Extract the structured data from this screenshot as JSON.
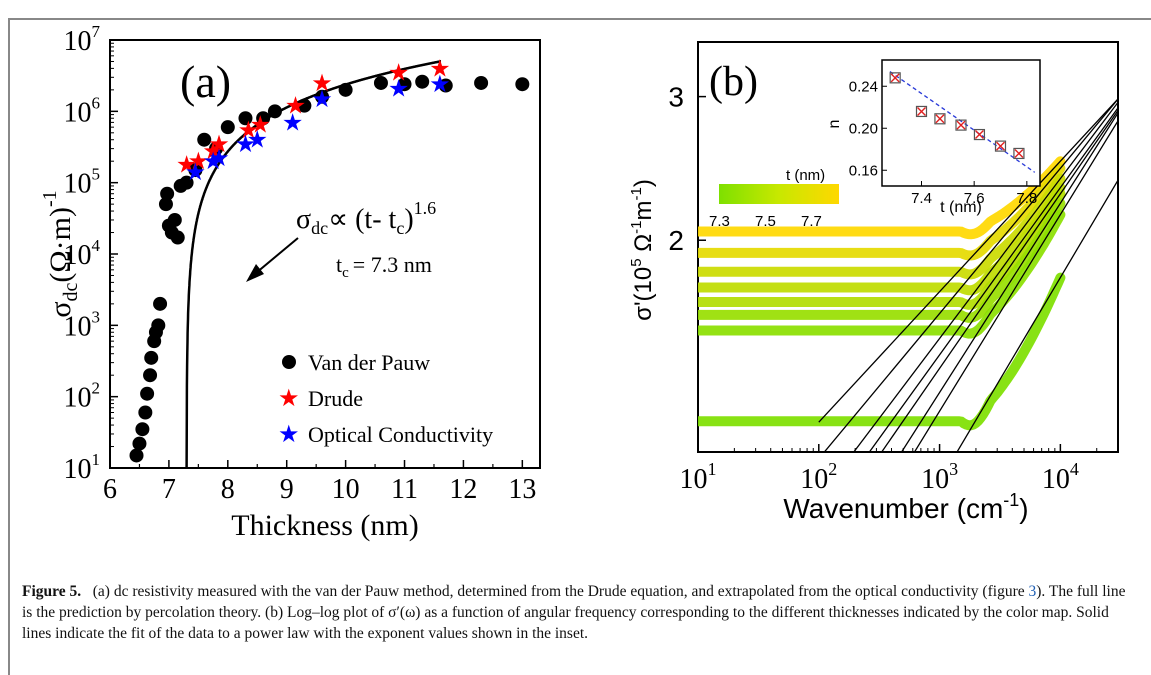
{
  "figure": {
    "panel_a": {
      "panel_label": "(a)",
      "xlabel": "Thickness (nm)",
      "ylabel_main": "σ",
      "ylabel_sub": "dc",
      "ylabel_unit": "(Ω·m)",
      "ylabel_exp": "-1",
      "formula_main": "σ",
      "formula_sub": "dc",
      "formula_mid": "∝ (t- t",
      "formula_sub2": "c",
      "formula_end": ")",
      "formula_exp": "1.6",
      "tc_label": "t",
      "tc_sub": "c",
      "tc_value": "= 7.3 nm",
      "legend": [
        "Van der Pauw",
        "Drude",
        "Optical Conductivity"
      ],
      "x_ticks": [
        "6",
        "7",
        "8",
        "9",
        "10",
        "11",
        "12",
        "13"
      ],
      "y_ticks_base": [
        "10",
        "10",
        "10",
        "10",
        "10",
        "10",
        "10"
      ],
      "y_ticks_exp": [
        "1",
        "2",
        "3",
        "4",
        "5",
        "6",
        "7"
      ]
    },
    "panel_b": {
      "panel_label": "(b)",
      "xlabel": "Wavenumber (cm",
      "xlabel_exp": "-1",
      "xlabel_end": ")",
      "ylabel": "σ'(10",
      "ylabel_exp": "5",
      "ylabel_mid": " Ω",
      "ylabel_exp2": "-1",
      "ylabel_mid2": "m",
      "ylabel_exp3": "-1",
      "ylabel_end": ")",
      "x_ticks_base": [
        "10",
        "10",
        "10",
        "10"
      ],
      "x_ticks_exp": [
        "1",
        "2",
        "3",
        "4"
      ],
      "y_ticks": [
        "3",
        "2"
      ],
      "colorbar_title": "t (nm)",
      "colorbar_ticks": [
        "7.3",
        "7.5",
        "7.7"
      ],
      "inset_xlabel": "t (nm)",
      "inset_ylabel": "n",
      "inset_x_ticks": [
        "7.4",
        "7.6",
        "7.8"
      ],
      "inset_y_ticks": [
        "0.24",
        "0.20",
        "0.16"
      ]
    },
    "caption": {
      "label": "Figure 5.",
      "text_1": "(a) dc resistivity measured with the van der Pauw method, determined from the Drude equation, and extrapolated from the optical conductivity (figure ",
      "ref": "3",
      "text_2": "). The full line is the prediction by percolation theory. (b) Log–log plot of σ′(ω) as a function of angular frequency corresponding to the different thicknesses indicated by the color map. Solid lines indicate the fit of the data to a power law with the exponent values shown in the inset."
    }
  },
  "chart_data": [
    {
      "type": "scatter",
      "title": "(a)",
      "xlabel": "Thickness (nm)",
      "ylabel": "σdc(Ω·m)-1",
      "xlim": [
        6,
        13.3
      ],
      "ylim": [
        10,
        10000000
      ],
      "y_scale": "log",
      "legend_position": "bottom-right",
      "series": [
        {
          "name": "Van der Pauw",
          "marker": "circle",
          "color": "#000000",
          "x": [
            6.45,
            6.5,
            6.55,
            6.6,
            6.63,
            6.68,
            6.7,
            6.75,
            6.78,
            6.82,
            6.85,
            6.95,
            6.97,
            7.0,
            7.05,
            7.1,
            7.15,
            7.2,
            7.3,
            7.45,
            7.6,
            7.8,
            8.0,
            8.3,
            8.6,
            8.8,
            9.3,
            9.6,
            10.0,
            10.6,
            11.0,
            11.3,
            11.7,
            12.3,
            13.0
          ],
          "y": [
            15,
            22,
            35,
            60,
            110,
            200,
            350,
            600,
            800,
            1000,
            2000,
            50000,
            70000,
            25000,
            20000,
            30000,
            17000,
            90000,
            100000,
            150000,
            400000,
            300000,
            600000,
            800000,
            800000,
            1000000,
            1200000,
            1600000,
            2000000,
            2500000,
            2400000,
            2600000,
            2300000,
            2500000,
            2400000
          ]
        },
        {
          "name": "Drude",
          "marker": "star",
          "color": "#ff0000",
          "x": [
            7.3,
            7.5,
            7.75,
            7.85,
            8.35,
            8.55,
            9.15,
            9.6,
            10.9,
            11.6
          ],
          "y": [
            180000,
            200000,
            280000,
            350000,
            550000,
            650000,
            1200000,
            2500000,
            3500000,
            4000000
          ]
        },
        {
          "name": "Optical Conductivity",
          "marker": "star",
          "color": "#0000ff",
          "x": [
            7.45,
            7.75,
            7.85,
            8.3,
            8.5,
            9.1,
            9.6,
            10.9,
            11.6
          ],
          "y": [
            140000,
            200000,
            220000,
            350000,
            400000,
            700000,
            1500000,
            2100000,
            2400000
          ]
        }
      ],
      "fit": {
        "label": "σdc∝ (t- tc)1.6",
        "tc": 7.3,
        "exponent": 1.6
      }
    },
    {
      "type": "line",
      "title": "(b)",
      "xlabel": "Wavenumber (cm-1)",
      "ylabel": "σ'(105 Ω-1m-1)",
      "x_scale": "log",
      "y_scale": "log",
      "xlim": [
        10,
        30000
      ],
      "ylim": [
        1.1,
        3.5
      ],
      "colorbar": {
        "title": "t (nm)",
        "range": [
          7.3,
          7.8
        ],
        "ticks": [
          7.3,
          7.5,
          7.7
        ]
      },
      "series": [
        {
          "t": 7.8,
          "plateau": 2.05,
          "end": 2.5
        },
        {
          "t": 7.7,
          "plateau": 1.93,
          "end": 2.45
        },
        {
          "t": 7.6,
          "plateau": 1.83,
          "end": 2.38
        },
        {
          "t": 7.55,
          "plateau": 1.75,
          "end": 2.32
        },
        {
          "t": 7.5,
          "plateau": 1.68,
          "end": 2.28
        },
        {
          "t": 7.4,
          "plateau": 1.62,
          "end": 2.22
        },
        {
          "t": 7.35,
          "plateau": 1.55,
          "end": 2.15
        },
        {
          "t": 7.3,
          "plateau": 1.2,
          "end": 1.8
        }
      ],
      "inset": {
        "xlabel": "t (nm)",
        "ylabel": "n",
        "x": [
          7.3,
          7.4,
          7.47,
          7.55,
          7.62,
          7.7,
          7.77
        ],
        "y": [
          0.248,
          0.216,
          0.209,
          0.203,
          0.194,
          0.183,
          0.176
        ]
      }
    }
  ]
}
